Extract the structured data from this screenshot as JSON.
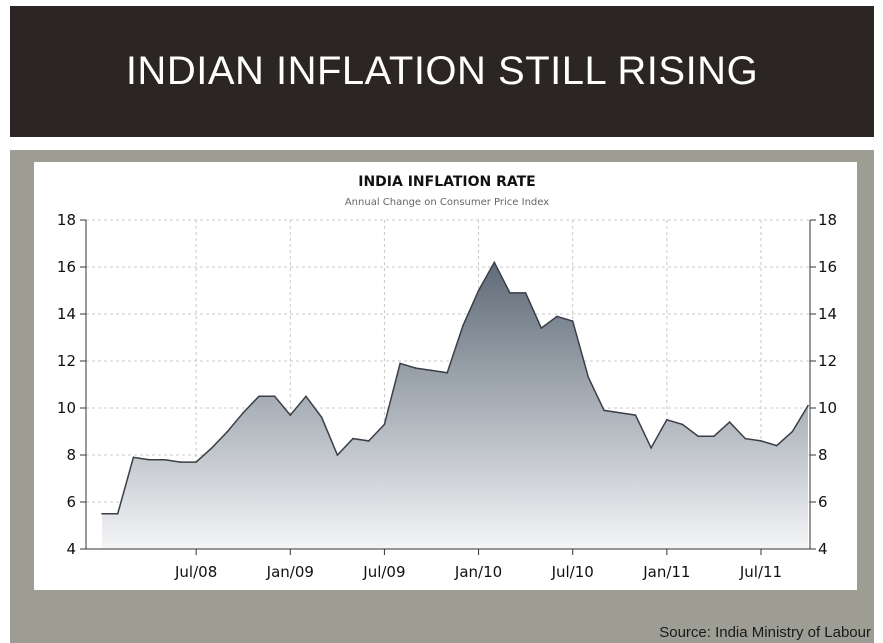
{
  "header": {
    "title": "INDIAN INFLATION STILL RISING"
  },
  "footer": {
    "source": "Source: India Ministry of Labour"
  },
  "colors": {
    "header_bg": "#2b2523",
    "panel_bg": "#9d9d94",
    "line": "#3a3f47",
    "fill_top": "#5f6b78",
    "fill_bottom": "#f4f5f7"
  },
  "chart_data": {
    "type": "area",
    "title": "INDIA INFLATION RATE",
    "subtitle": "Annual Change on Consumer Price Index",
    "xlabel": "",
    "ylabel": "",
    "ylim": [
      4,
      18
    ],
    "yticks": [
      4,
      6,
      8,
      10,
      12,
      14,
      16,
      18
    ],
    "grid": true,
    "x_tick_labels": [
      "Jul/08",
      "Jan/09",
      "Jul/09",
      "Jan/10",
      "Jul/10",
      "Jan/11",
      "Jul/11"
    ],
    "x": [
      "2008-01",
      "2008-02",
      "2008-03",
      "2008-04",
      "2008-05",
      "2008-06",
      "2008-07",
      "2008-08",
      "2008-09",
      "2008-10",
      "2008-11",
      "2008-12",
      "2009-01",
      "2009-02",
      "2009-03",
      "2009-04",
      "2009-05",
      "2009-06",
      "2009-07",
      "2009-08",
      "2009-09",
      "2009-10",
      "2009-11",
      "2009-12",
      "2010-01",
      "2010-02",
      "2010-03",
      "2010-04",
      "2010-05",
      "2010-06",
      "2010-07",
      "2010-08",
      "2010-09",
      "2010-10",
      "2010-11",
      "2010-12",
      "2011-01",
      "2011-02",
      "2011-03",
      "2011-04",
      "2011-05",
      "2011-06",
      "2011-07",
      "2011-08",
      "2011-09",
      "2011-10"
    ],
    "values": [
      5.5,
      5.5,
      7.9,
      7.8,
      7.8,
      7.7,
      7.7,
      8.3,
      9.0,
      9.8,
      10.5,
      10.5,
      9.7,
      10.5,
      9.6,
      8.0,
      8.7,
      8.6,
      9.3,
      11.9,
      11.7,
      11.6,
      11.5,
      13.5,
      15.0,
      16.2,
      14.9,
      14.9,
      13.4,
      13.9,
      13.7,
      11.3,
      9.9,
      9.8,
      9.7,
      8.3,
      9.5,
      9.3,
      8.8,
      8.8,
      9.4,
      8.7,
      8.6,
      8.4,
      9.0,
      10.1
    ]
  }
}
